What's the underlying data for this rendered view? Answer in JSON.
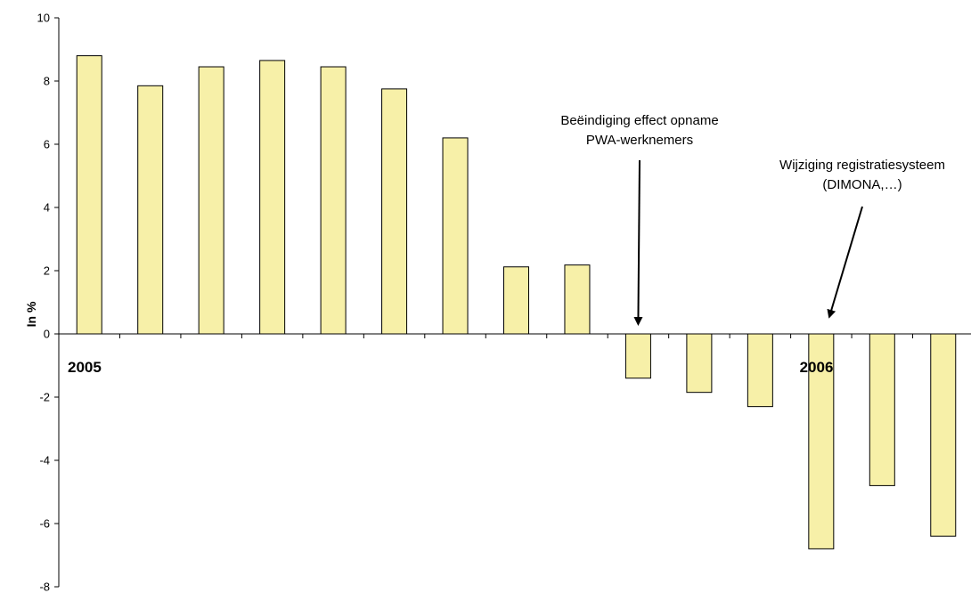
{
  "chart_data": {
    "type": "bar",
    "ylabel": "In %",
    "ylim": [
      -8,
      10
    ],
    "yticks": [
      10,
      8,
      6,
      4,
      2,
      0,
      -2,
      -4,
      -6,
      -8
    ],
    "year_labels": [
      {
        "text": "2005",
        "index": 0
      },
      {
        "text": "2006",
        "index": 12
      }
    ],
    "values": [
      8.8,
      7.85,
      8.45,
      8.65,
      8.45,
      7.75,
      6.2,
      2.12,
      2.18,
      -1.4,
      -1.85,
      -2.3,
      -6.8,
      -4.8,
      -6.4
    ],
    "annotations": [
      {
        "lines": [
          "Beëindiging effect opname",
          "PWA-werknemers"
        ],
        "points_to_index": 9
      },
      {
        "lines": [
          "Wijziging registratiesysteem",
          "(DIMONA,…)"
        ],
        "points_to_index": 12
      }
    ],
    "colors": {
      "bar_fill": "#f7f0a8",
      "bar_stroke": "#000000",
      "axis": "#000000"
    }
  }
}
